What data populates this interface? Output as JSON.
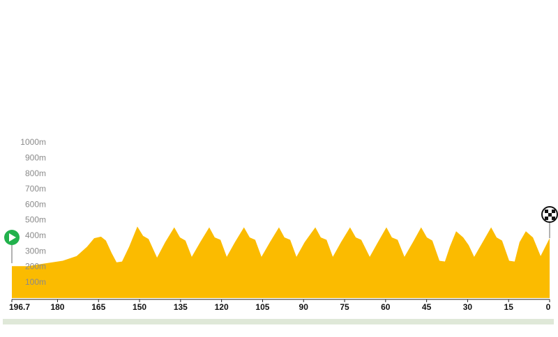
{
  "chart_data": {
    "type": "area",
    "color": "#fbbb00",
    "x": [
      196.7,
      190.8,
      185.7,
      178.1,
      173.0,
      169.2,
      166.6,
      164.1,
      162.3,
      160.2,
      158.4,
      156.4,
      153.8,
      150.8,
      148.7,
      146.7,
      143.6,
      140.6,
      137.3,
      135.2,
      133.2,
      130.9,
      127.8,
      124.5,
      122.5,
      120.4,
      118.1,
      115.1,
      111.8,
      109.7,
      107.7,
      105.4,
      102.3,
      99.0,
      97.0,
      94.9,
      92.6,
      89.6,
      85.7,
      83.7,
      81.6,
      79.3,
      76.3,
      73.0,
      70.9,
      68.9,
      65.8,
      62.8,
      59.7,
      57.7,
      55.6,
      53.1,
      50.0,
      47.0,
      44.9,
      42.9,
      40.3,
      38.3,
      36.5,
      34.2,
      31.6,
      29.6,
      27.6,
      24.5,
      21.4,
      19.4,
      17.4,
      14.8,
      12.8,
      11.0,
      8.7,
      6.1,
      3.3,
      0
    ],
    "values": [
      205,
      205,
      220,
      240,
      270,
      330,
      385,
      395,
      370,
      290,
      230,
      235,
      330,
      460,
      400,
      380,
      260,
      360,
      455,
      390,
      370,
      265,
      360,
      455,
      390,
      375,
      265,
      360,
      455,
      390,
      375,
      265,
      360,
      455,
      390,
      375,
      265,
      360,
      455,
      390,
      375,
      265,
      360,
      455,
      390,
      375,
      265,
      360,
      455,
      390,
      375,
      265,
      360,
      455,
      390,
      370,
      240,
      235,
      330,
      430,
      390,
      340,
      265,
      360,
      455,
      390,
      370,
      240,
      235,
      360,
      430,
      390,
      270,
      385
    ],
    "xlim": [
      196.7,
      0
    ],
    "xticks": [
      196.7,
      180,
      165,
      150,
      135,
      120,
      105,
      90,
      75,
      60,
      45,
      30,
      15,
      0
    ],
    "ylim": [
      0,
      1000
    ],
    "yticks": [
      {
        "value": 100,
        "label": "100m"
      },
      {
        "value": 200,
        "label": "200m"
      },
      {
        "value": 300,
        "label": "300m"
      },
      {
        "value": 400,
        "label": "400m"
      },
      {
        "value": 500,
        "label": "500m"
      },
      {
        "value": 600,
        "label": "600m"
      },
      {
        "value": 700,
        "label": "700m"
      },
      {
        "value": 800,
        "label": "800m"
      },
      {
        "value": 900,
        "label": "900m"
      },
      {
        "value": 1000,
        "label": "1000m"
      }
    ]
  }
}
